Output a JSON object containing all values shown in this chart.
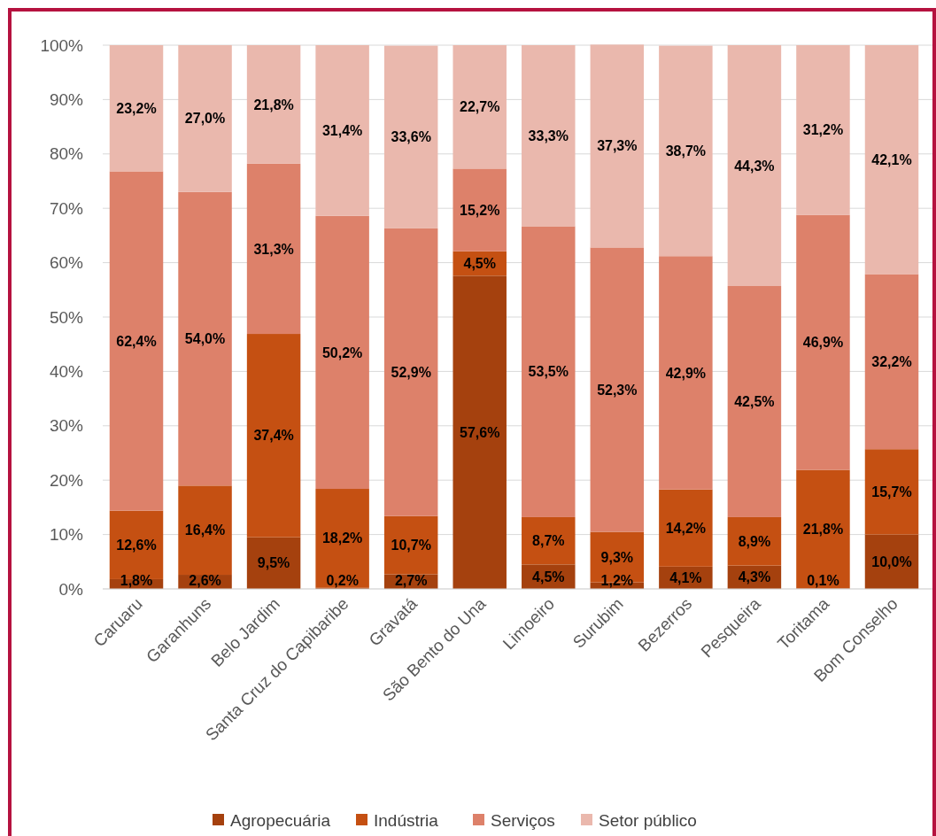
{
  "chart_data": {
    "type": "bar",
    "stacked": true,
    "categories": [
      "Caruaru",
      "Garanhuns",
      "Belo Jardim",
      "Santa Cruz do Capibaribe",
      "Gravatá",
      "São Bento do Una",
      "Limoeiro",
      "Surubim",
      "Bezerros",
      "Pesqueira",
      "Toritama",
      "Bom Conselho"
    ],
    "series": [
      {
        "name": "Agropecuária",
        "color": "#a5410e",
        "values": [
          1.8,
          2.6,
          9.5,
          0.2,
          2.7,
          57.6,
          4.5,
          1.2,
          4.1,
          4.3,
          0.1,
          10.0
        ],
        "value_labels": [
          "1,8%",
          "2,6%",
          "9,5%",
          "0,2%",
          "2,7%",
          "57,6%",
          "4,5%",
          "1,2%",
          "4,1%",
          "4,3%",
          "0,1%",
          "10,0%"
        ]
      },
      {
        "name": "Indústria",
        "color": "#c55012",
        "values": [
          12.6,
          16.4,
          37.4,
          18.2,
          10.7,
          4.5,
          8.7,
          9.3,
          14.2,
          8.9,
          21.8,
          15.7
        ],
        "value_labels": [
          "12,6%",
          "16,4%",
          "37,4%",
          "18,2%",
          "10,7%",
          "4,5%",
          "8,7%",
          "9,3%",
          "14,2%",
          "8,9%",
          "21,8%",
          "15,7%"
        ]
      },
      {
        "name": "Serviços",
        "color": "#dd816a",
        "values": [
          62.4,
          54.0,
          31.3,
          50.2,
          52.9,
          15.2,
          53.5,
          52.3,
          42.9,
          42.5,
          46.9,
          32.2
        ],
        "value_labels": [
          "62,4%",
          "54,0%",
          "31,3%",
          "50,2%",
          "52,9%",
          "15,2%",
          "53,5%",
          "52,3%",
          "42,9%",
          "42,5%",
          "46,9%",
          "32,2%"
        ]
      },
      {
        "name": "Setor público",
        "color": "#eab8ad",
        "values": [
          23.2,
          27.0,
          21.8,
          31.4,
          33.6,
          22.7,
          33.3,
          37.3,
          38.7,
          44.3,
          31.2,
          42.1
        ],
        "value_labels": [
          "23,2%",
          "27,0%",
          "21,8%",
          "31,4%",
          "33,6%",
          "22,7%",
          "33,3%",
          "37,3%",
          "38,7%",
          "44,3%",
          "31,2%",
          "42,1%"
        ]
      }
    ],
    "ylim": [
      0,
      100
    ],
    "yticks": [
      {
        "value": 0,
        "label": "0%"
      },
      {
        "value": 10,
        "label": "10%"
      },
      {
        "value": 20,
        "label": "20%"
      },
      {
        "value": 30,
        "label": "30%"
      },
      {
        "value": 40,
        "label": "40%"
      },
      {
        "value": 50,
        "label": "50%"
      },
      {
        "value": 60,
        "label": "60%"
      },
      {
        "value": 70,
        "label": "70%"
      },
      {
        "value": 80,
        "label": "80%"
      },
      {
        "value": 90,
        "label": "90%"
      },
      {
        "value": 100,
        "label": "100%"
      }
    ],
    "grid": "y",
    "legend": "bottom"
  }
}
